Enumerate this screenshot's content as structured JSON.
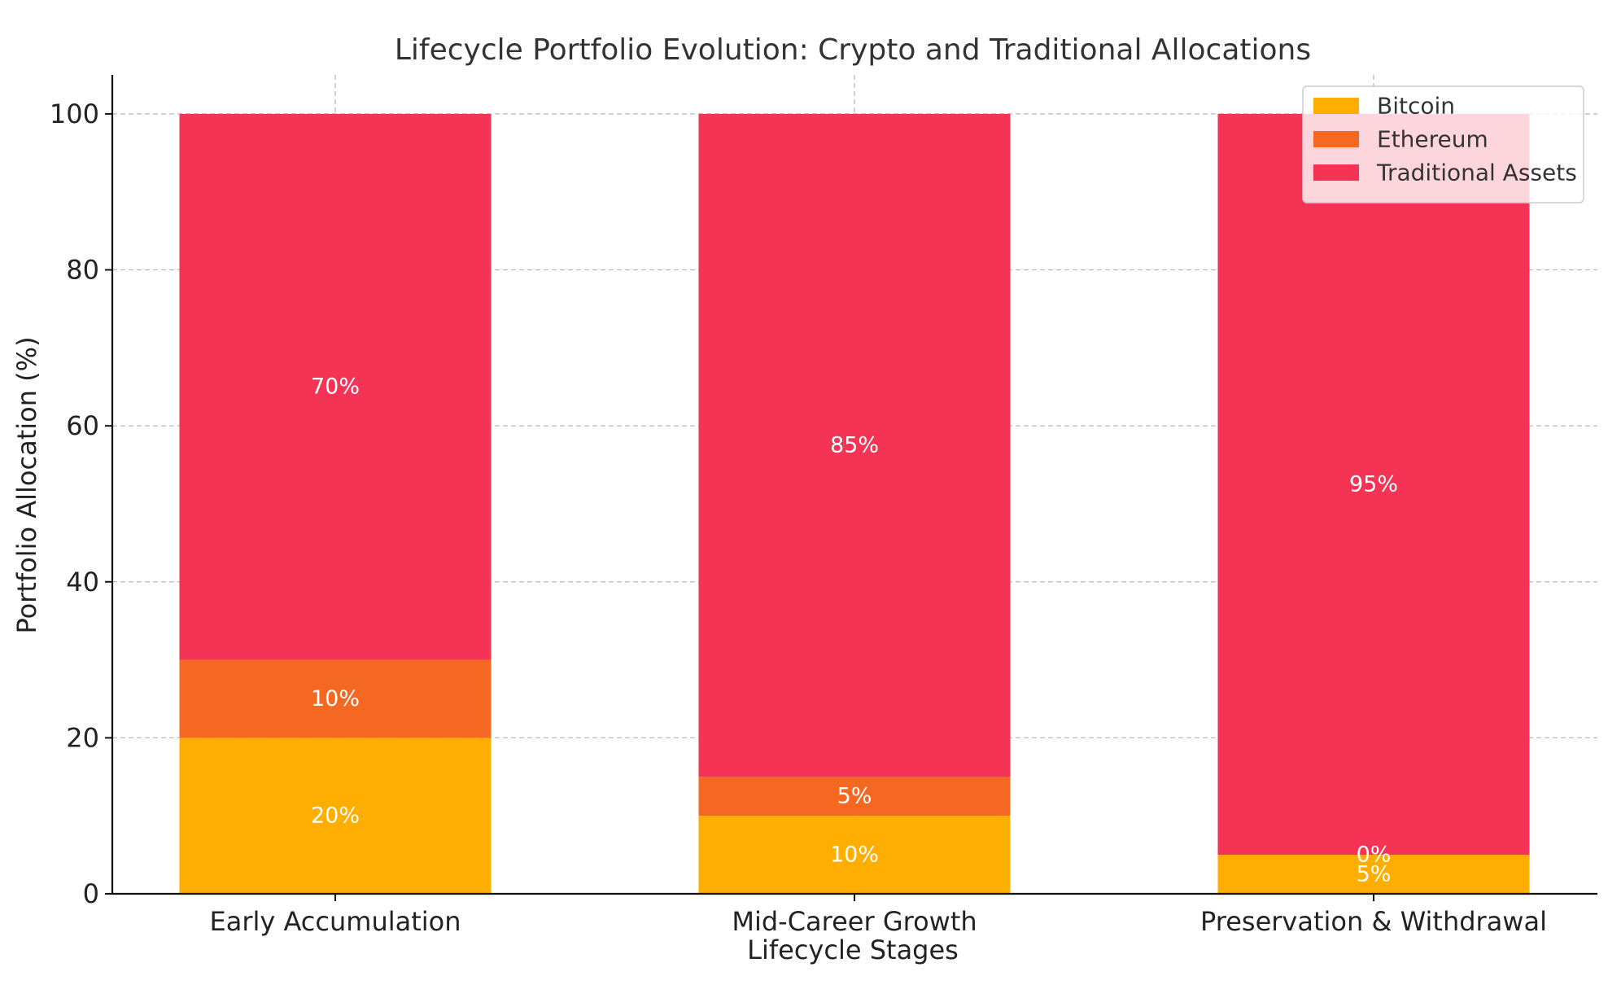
{
  "chart_data": {
    "type": "bar",
    "stacked": true,
    "title": "Lifecycle Portfolio Evolution: Crypto and Traditional Allocations",
    "xlabel": "Lifecycle Stages",
    "ylabel": "Portfolio Allocation (%)",
    "categories": [
      "Early Accumulation",
      "Mid-Career Growth",
      "Preservation & Withdrawal"
    ],
    "ylim": [
      0,
      105
    ],
    "yticks": [
      0,
      20,
      40,
      60,
      80,
      100
    ],
    "grid": true,
    "legend_position": "top-right",
    "series": [
      {
        "name": "Bitcoin",
        "values": [
          20,
          10,
          5
        ],
        "labels": [
          "20%",
          "10%",
          "5%"
        ],
        "color": "#FFAE00"
      },
      {
        "name": "Ethereum",
        "values": [
          10,
          5,
          0
        ],
        "labels": [
          "10%",
          "5%",
          "0%"
        ],
        "color": "#F56822"
      },
      {
        "name": "Traditional Assets",
        "values": [
          70,
          85,
          95
        ],
        "labels": [
          "70%",
          "85%",
          "95%"
        ],
        "color": "#F43355"
      }
    ]
  }
}
